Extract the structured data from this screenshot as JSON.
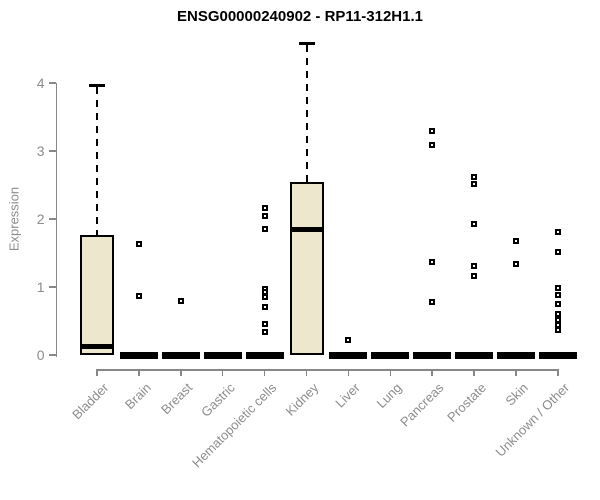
{
  "chart_data": {
    "type": "boxplot",
    "title": "ENSG00000240902 - RP11-312H1.1",
    "ylabel": "Expression",
    "xlabel": "",
    "yticks": [
      0,
      1,
      2,
      3,
      4
    ],
    "ylim": [
      0,
      4.7
    ],
    "grid": false,
    "legend": "none",
    "categories": [
      "Bladder",
      "Brain",
      "Breast",
      "Gastric",
      "Hematopoietic cells",
      "Kidney",
      "Liver",
      "Lung",
      "Pancreas",
      "Prostate",
      "Skin",
      "Unknown / Other"
    ],
    "boxes": [
      {
        "category": "Bladder",
        "q1": 0,
        "median": 0.13,
        "q3": 1.76,
        "whisker_low": 0,
        "whisker_high": 3.97,
        "outliers": []
      },
      {
        "category": "Brain",
        "q1": 0,
        "median": 0,
        "q3": 0,
        "whisker_low": 0,
        "whisker_high": 0,
        "outliers": [
          1.63,
          0.87
        ]
      },
      {
        "category": "Breast",
        "q1": 0,
        "median": 0,
        "q3": 0,
        "whisker_low": 0,
        "whisker_high": 0,
        "outliers": [
          0.79
        ]
      },
      {
        "category": "Gastric",
        "q1": 0,
        "median": 0,
        "q3": 0,
        "whisker_low": 0,
        "whisker_high": 0,
        "outliers": []
      },
      {
        "category": "Hematopoietic cells",
        "q1": 0,
        "median": 0,
        "q3": 0,
        "whisker_low": 0,
        "whisker_high": 0,
        "outliers": [
          2.16,
          2.04,
          1.85,
          0.97,
          0.93,
          0.85,
          0.71,
          0.45,
          0.34
        ]
      },
      {
        "category": "Kidney",
        "q1": 0,
        "median": 1.84,
        "q3": 2.54,
        "whisker_low": 0,
        "whisker_high": 4.59,
        "outliers": []
      },
      {
        "category": "Liver",
        "q1": 0,
        "median": 0,
        "q3": 0,
        "whisker_low": 0,
        "whisker_high": 0,
        "outliers": [
          0.22
        ]
      },
      {
        "category": "Lung",
        "q1": 0,
        "median": 0,
        "q3": 0,
        "whisker_low": 0,
        "whisker_high": 0,
        "outliers": []
      },
      {
        "category": "Pancreas",
        "q1": 0,
        "median": 0,
        "q3": 0,
        "whisker_low": 0,
        "whisker_high": 0,
        "outliers": [
          3.29,
          3.09,
          1.37,
          0.78
        ]
      },
      {
        "category": "Prostate",
        "q1": 0,
        "median": 0,
        "q3": 0,
        "whisker_low": 0,
        "whisker_high": 0,
        "outliers": [
          2.62,
          2.51,
          1.93,
          1.31,
          1.16
        ]
      },
      {
        "category": "Skin",
        "q1": 0,
        "median": 0,
        "q3": 0,
        "whisker_low": 0,
        "whisker_high": 0,
        "outliers": [
          1.68,
          1.34
        ]
      },
      {
        "category": "Unknown / Other",
        "q1": 0,
        "median": 0,
        "q3": 0,
        "whisker_low": 0,
        "whisker_high": 0,
        "outliers": [
          1.81,
          1.51,
          0.99,
          0.88,
          0.75,
          0.6,
          0.51,
          0.44,
          0.37
        ]
      }
    ],
    "colors": {
      "box_fill": "#ece7cd",
      "box_border": "#000000",
      "median": "#000000",
      "outlier": "#000000",
      "axis": "#878787",
      "tick_text": "#8c8c8c",
      "title_text": "#000000"
    }
  }
}
